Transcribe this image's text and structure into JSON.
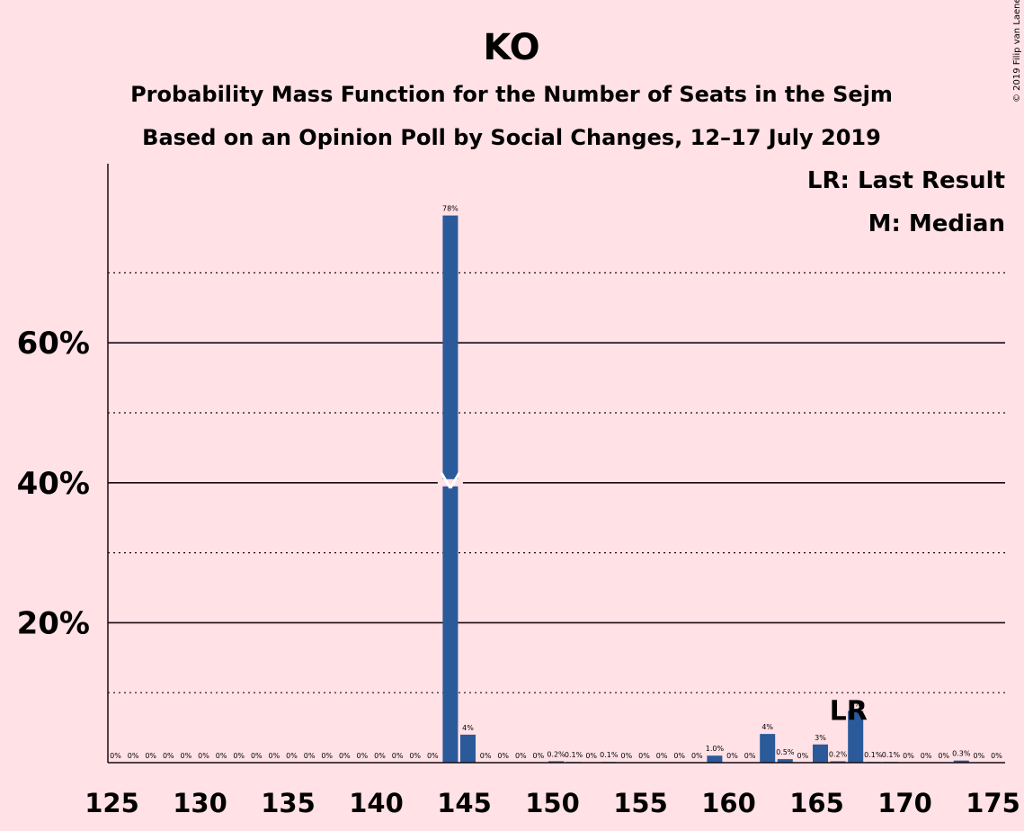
{
  "chart_data": {
    "type": "bar",
    "title": "KO",
    "subtitle": "Probability Mass Function for the Number of Seats in the Sejm",
    "subtitle2": "Based on an Opinion Poll by Social Changes, 12–17 July 2019",
    "copyright": "© 2019 Filip van Laenen",
    "legend": {
      "last_result": "LR: Last Result",
      "median": "M: Median",
      "placement": "top-right"
    },
    "x": [
      125,
      126,
      127,
      128,
      129,
      130,
      131,
      132,
      133,
      134,
      135,
      136,
      137,
      138,
      139,
      140,
      141,
      142,
      143,
      144,
      145,
      146,
      147,
      148,
      149,
      150,
      151,
      152,
      153,
      154,
      155,
      156,
      157,
      158,
      159,
      160,
      161,
      162,
      163,
      164,
      165,
      166,
      167,
      168,
      169,
      170,
      171,
      172,
      173,
      174,
      175
    ],
    "values": [
      0,
      0,
      0,
      0,
      0,
      0,
      0,
      0,
      0,
      0,
      0,
      0,
      0,
      0,
      0,
      0,
      0,
      0,
      0,
      78.2,
      4.0,
      0,
      0,
      0,
      0,
      0.2,
      0.1,
      0,
      0.1,
      0,
      0,
      0,
      0,
      0,
      1.0,
      0,
      0,
      4.1,
      0.5,
      0,
      2.6,
      0.2,
      7.4,
      0.1,
      0.1,
      0,
      0,
      0,
      0.3,
      0,
      0
    ],
    "labels": [
      "0%",
      "0%",
      "0%",
      "0%",
      "0%",
      "0%",
      "0%",
      "0%",
      "0%",
      "0%",
      "0%",
      "0%",
      "0%",
      "0%",
      "0%",
      "0%",
      "0%",
      "0%",
      "0%",
      "78%",
      "4%",
      "0%",
      "0%",
      "0%",
      "0%",
      "0.2%",
      "0.1%",
      "0%",
      "0.1%",
      "0%",
      "0%",
      "0%",
      "0%",
      "0%",
      "1.0%",
      "0%",
      "0%",
      "4%",
      "0.5%",
      "0%",
      "3%",
      "0.2%",
      "7%",
      "0.1%",
      "0.1%",
      "0%",
      "0%",
      "0%",
      "0.3%",
      "0%",
      "0%"
    ],
    "xticks": [
      "125",
      "130",
      "135",
      "140",
      "145",
      "150",
      "155",
      "160",
      "165",
      "170",
      "175"
    ],
    "yticks": [
      "20%",
      "40%",
      "60%"
    ],
    "ylim": [
      0,
      85
    ],
    "median": 144,
    "last_result": 167,
    "last_result_label": "LR",
    "grid": "solid at 20% steps, dotted at 10% steps",
    "colors": {
      "bar": "#2a5a9a",
      "background": "#ffe1e6",
      "text": "#1a0a10"
    }
  }
}
